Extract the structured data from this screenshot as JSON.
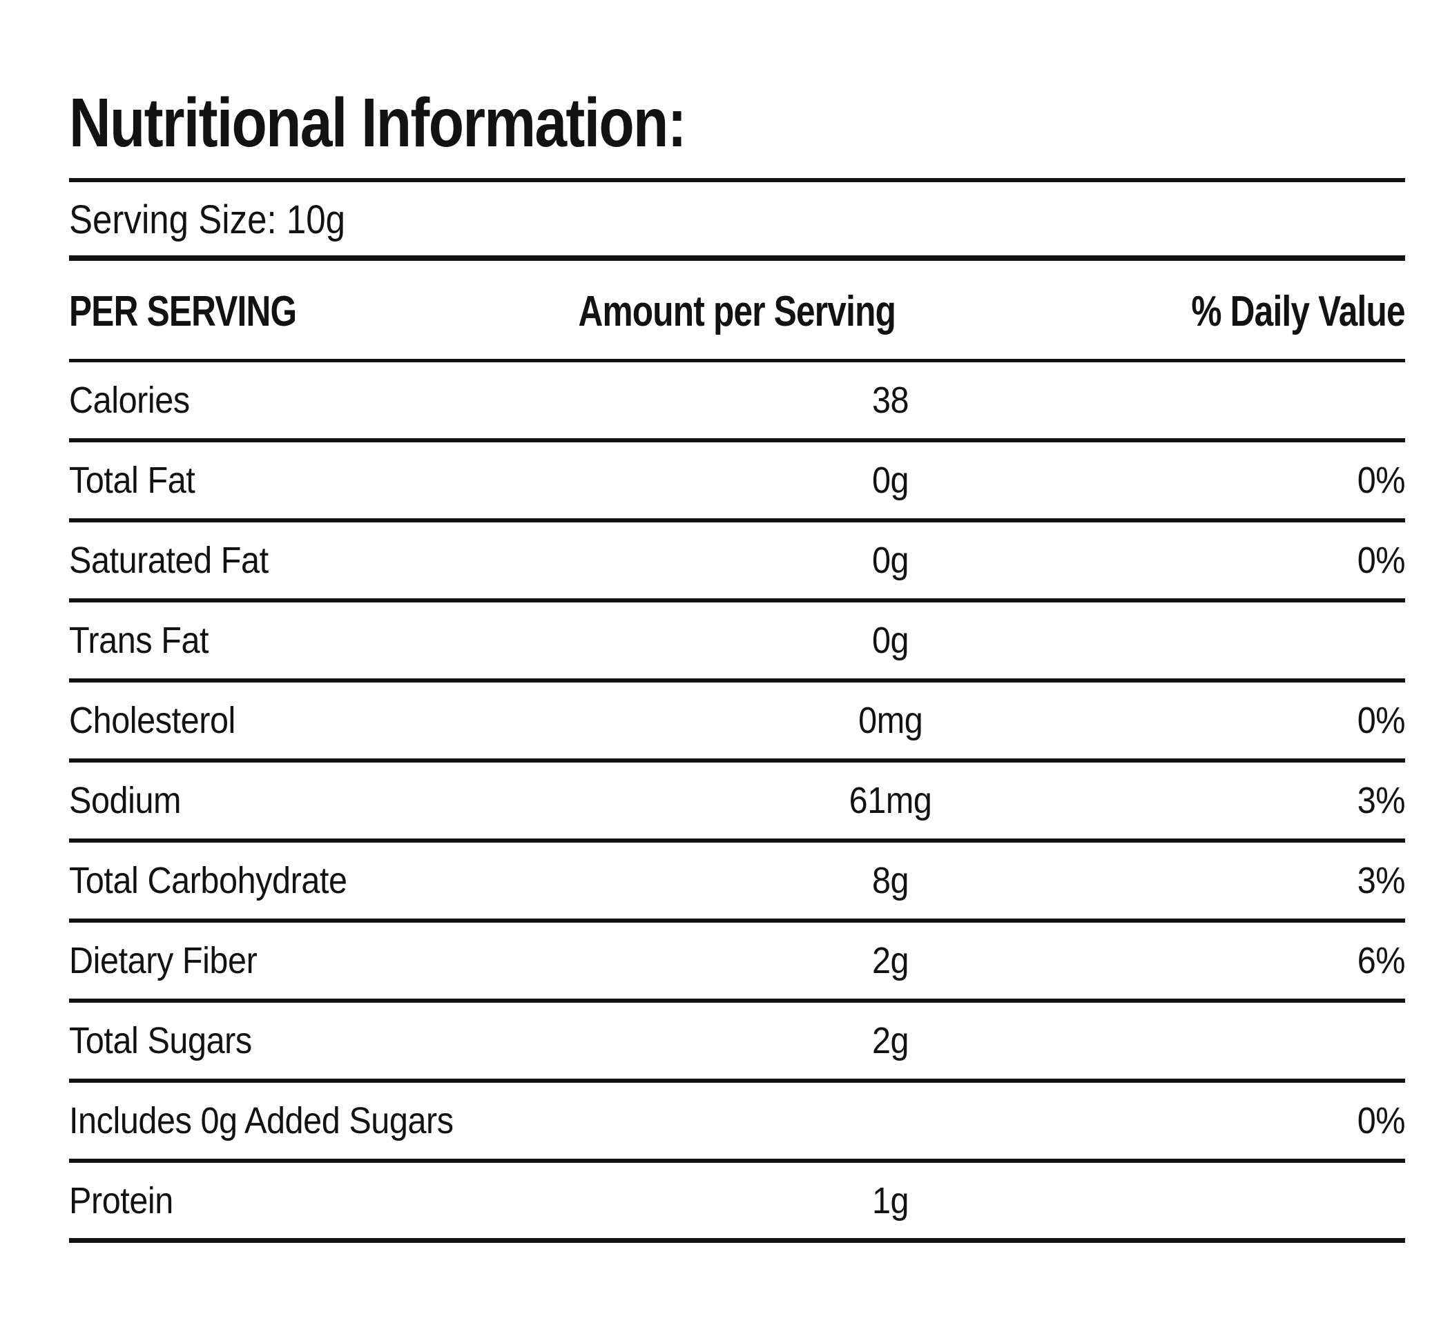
{
  "page": {
    "title": "Nutritional Information:",
    "serving_size": "Serving Size: 10g",
    "text_color": "#121212",
    "background_color": "#ffffff"
  },
  "table": {
    "headers": {
      "per_serving": "PER SERVING",
      "amount": "Amount per Serving",
      "daily_value": "% Daily Value"
    },
    "rows": [
      {
        "label": "Calories",
        "amount": "38",
        "daily_value": ""
      },
      {
        "label": "Total Fat",
        "amount": "0g",
        "daily_value": "0%"
      },
      {
        "label": "Saturated Fat",
        "amount": "0g",
        "daily_value": "0%"
      },
      {
        "label": "Trans Fat",
        "amount": "0g",
        "daily_value": ""
      },
      {
        "label": "Cholesterol",
        "amount": "0mg",
        "daily_value": "0%"
      },
      {
        "label": "Sodium",
        "amount": "61mg",
        "daily_value": "3%"
      },
      {
        "label": "Total Carbohydrate",
        "amount": "8g",
        "daily_value": "3%"
      },
      {
        "label": "Dietary Fiber",
        "amount": "2g",
        "daily_value": "6%"
      },
      {
        "label": "Total Sugars",
        "amount": "2g",
        "daily_value": ""
      },
      {
        "label": "Includes 0g Added Sugars",
        "amount": "",
        "daily_value": "0%"
      },
      {
        "label": "Protein",
        "amount": "1g",
        "daily_value": ""
      }
    ]
  }
}
